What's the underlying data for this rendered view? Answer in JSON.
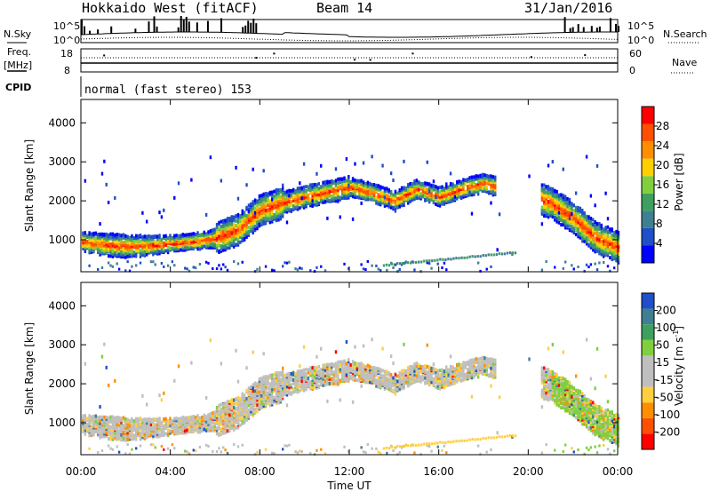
{
  "header": {
    "title": "Hokkaido West (fitACF)",
    "beam": "Beam 14",
    "date": "31/Jan/2016"
  },
  "strip": {
    "nsky_label": "N.Sky",
    "nsearch_label": "N.Search",
    "nsky_ticks": [
      "10^5",
      "10^0"
    ],
    "nsearch_ticks": [
      "10^5",
      "10^0"
    ],
    "freq_label": "Freq.",
    "freq_unit": "[MHz]",
    "freq_ticks": [
      "18",
      "8"
    ],
    "nave_label": "Nave",
    "nave_ticks": [
      "60",
      "0"
    ],
    "cpid_label": "CPID",
    "cpid_text": "normal (fast stereo) 153"
  },
  "colors": {
    "power_scale": [
      "#0000ff",
      "#1f4fc9",
      "#3f7f93",
      "#3f9f5f",
      "#7fcf3f",
      "#ffcf00",
      "#ff8f00",
      "#ff4f00",
      "#ff0000"
    ],
    "velocity_scale": [
      "#ff0000",
      "#ff4f00",
      "#ff8f00",
      "#ffcf3f",
      "#bfbfbf",
      "#bfbfbf",
      "#7fcf3f",
      "#3f9f5f",
      "#3f7f93",
      "#1f4fc9"
    ]
  },
  "chart_data": [
    {
      "type": "heatmap",
      "name": "power",
      "ylabel": "Slant Range [km]",
      "ylim": [
        180,
        4600
      ],
      "yticks": [
        1000,
        2000,
        3000,
        4000
      ],
      "xlim": [
        0,
        24
      ],
      "colorbar": {
        "label": "Power [dB]",
        "ticks": [
          "28",
          "24",
          "20",
          "16",
          "12",
          "8",
          "4"
        ],
        "range": [
          0,
          32
        ]
      },
      "echo_band": [
        {
          "t": 0.0,
          "range": 1000
        },
        {
          "t": 1.0,
          "range": 920
        },
        {
          "t": 2.0,
          "range": 880
        },
        {
          "t": 3.0,
          "range": 900
        },
        {
          "t": 4.0,
          "range": 950
        },
        {
          "t": 5.0,
          "range": 1000
        },
        {
          "t": 6.0,
          "range": 1080
        },
        {
          "t": 7.0,
          "range": 1300
        },
        {
          "t": 8.0,
          "range": 1800
        },
        {
          "t": 9.0,
          "range": 2000
        },
        {
          "t": 10.0,
          "range": 2150
        },
        {
          "t": 12.0,
          "range": 2400
        },
        {
          "t": 13.0,
          "range": 2250
        },
        {
          "t": 14.0,
          "range": 2050
        },
        {
          "t": 15.0,
          "range": 2350
        },
        {
          "t": 16.0,
          "range": 2150
        },
        {
          "t": 17.0,
          "range": 2350
        },
        {
          "t": 18.0,
          "range": 2500
        },
        {
          "t": 21.0,
          "range": 2000
        },
        {
          "t": 22.0,
          "range": 1600
        },
        {
          "t": 23.0,
          "range": 1100
        },
        {
          "t": 24.0,
          "range": 850
        }
      ]
    },
    {
      "type": "heatmap",
      "name": "velocity",
      "ylabel": "Slant Range [km]",
      "ylim": [
        180,
        4600
      ],
      "yticks": [
        1000,
        2000,
        3000,
        4000
      ],
      "xlim": [
        0,
        24
      ],
      "colorbar": {
        "label_main": "Velocity [m s",
        "label_sup": "-1",
        "label_end": "]",
        "ticks": [
          "200",
          "100",
          "50",
          "15",
          "-15",
          "-50",
          "-100",
          "-200"
        ],
        "range": [
          -250,
          250
        ]
      },
      "xlabel": "Time UT",
      "xtick_labels": [
        "00:00",
        "04:00",
        "08:00",
        "12:00",
        "16:00",
        "20:00",
        "00:00"
      ],
      "xticks": [
        0,
        4,
        8,
        12,
        16,
        20,
        24
      ]
    }
  ]
}
